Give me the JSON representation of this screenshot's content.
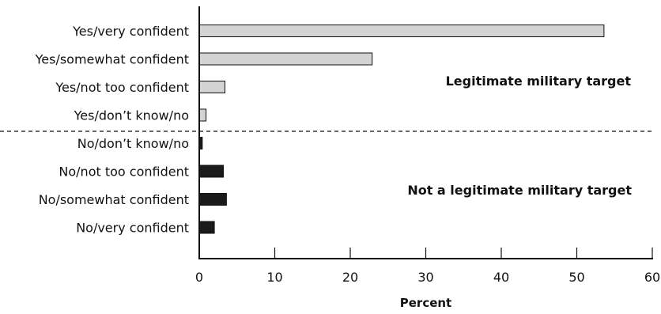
{
  "chart_data": {
    "type": "bar",
    "orientation": "horizontal",
    "xlabel": "Percent",
    "xlim": [
      0,
      60
    ],
    "xticks": [
      0,
      10,
      20,
      30,
      40,
      50,
      60
    ],
    "grid": false,
    "categories": [
      "Yes/very confident",
      "Yes/somewhat confident",
      "Yes/not too confident",
      "Yes/don’t know/no",
      "No/don’t know/no",
      "No/not too confident",
      "No/somewhat confident",
      "No/very confident"
    ],
    "values": [
      53.6,
      22.9,
      3.4,
      0.9,
      0.4,
      3.2,
      3.6,
      2.0
    ],
    "groups": [
      {
        "annotation": "Legitimate military target",
        "color": "#d3d3d3",
        "count": 4
      },
      {
        "annotation": "Not a legitimate military target",
        "color": "#1a1a1a",
        "count": 4
      }
    ]
  }
}
